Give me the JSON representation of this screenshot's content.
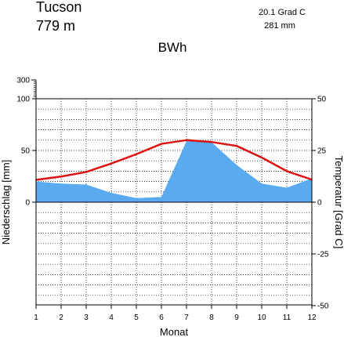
{
  "header": {
    "station": "Tucson",
    "elevation": "779  m",
    "mean_temperature": "20.1 Grad C",
    "annual_precipitation": "281 mm",
    "climate_class": "BWh"
  },
  "chart_data": {
    "type": "area",
    "xlabel": "Monat",
    "ylabel_left": "Niederschlag [mm]",
    "ylabel_right": "Temperatur [Grad C]",
    "x": [
      1,
      2,
      3,
      4,
      5,
      6,
      7,
      8,
      9,
      10,
      11,
      12
    ],
    "x_ticks": [
      "1",
      "2",
      "3",
      "4",
      "5",
      "6",
      "7",
      "8",
      "9",
      "10",
      "11",
      "12"
    ],
    "left_ticks": [
      "300",
      "100",
      "50",
      "0"
    ],
    "right_ticks": [
      "50",
      "25",
      "0",
      "-25",
      "-50"
    ],
    "ylim_left": [
      -100,
      300
    ],
    "ylim_right": [
      -50,
      50
    ],
    "grid": true,
    "series": [
      {
        "name": "Niederschlag",
        "unit": "mm",
        "axis": "left",
        "style": "area",
        "color": "#5aaaf0",
        "values": [
          20,
          18,
          17,
          9,
          4,
          5,
          59,
          58,
          36,
          18,
          14,
          23
        ]
      },
      {
        "name": "Temperatur",
        "unit": "Grad C",
        "axis": "right",
        "style": "line",
        "color": "#dd1111",
        "values": [
          10.8,
          12.4,
          14.6,
          18.7,
          23.2,
          28.2,
          30.0,
          29.1,
          27.2,
          21.6,
          15.0,
          10.9
        ]
      }
    ]
  }
}
